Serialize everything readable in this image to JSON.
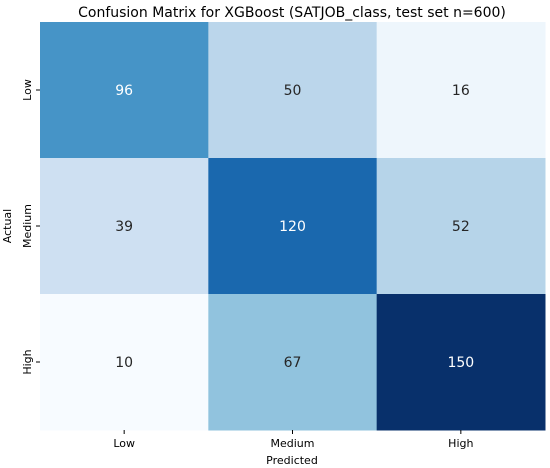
{
  "chart_data": {
    "type": "heatmap",
    "title": "Confusion Matrix for XGBoost (SATJOB_class, test set n=600)",
    "xlabel": "Predicted",
    "ylabel": "Actual",
    "x_categories": [
      "Low",
      "Medium",
      "High"
    ],
    "y_categories": [
      "Low",
      "Medium",
      "High"
    ],
    "values": [
      [
        96,
        50,
        16
      ],
      [
        39,
        120,
        52
      ],
      [
        10,
        67,
        150
      ]
    ],
    "color_scale": "Blues",
    "value_range": [
      10,
      150
    ],
    "colorbar": false,
    "grid": false
  }
}
